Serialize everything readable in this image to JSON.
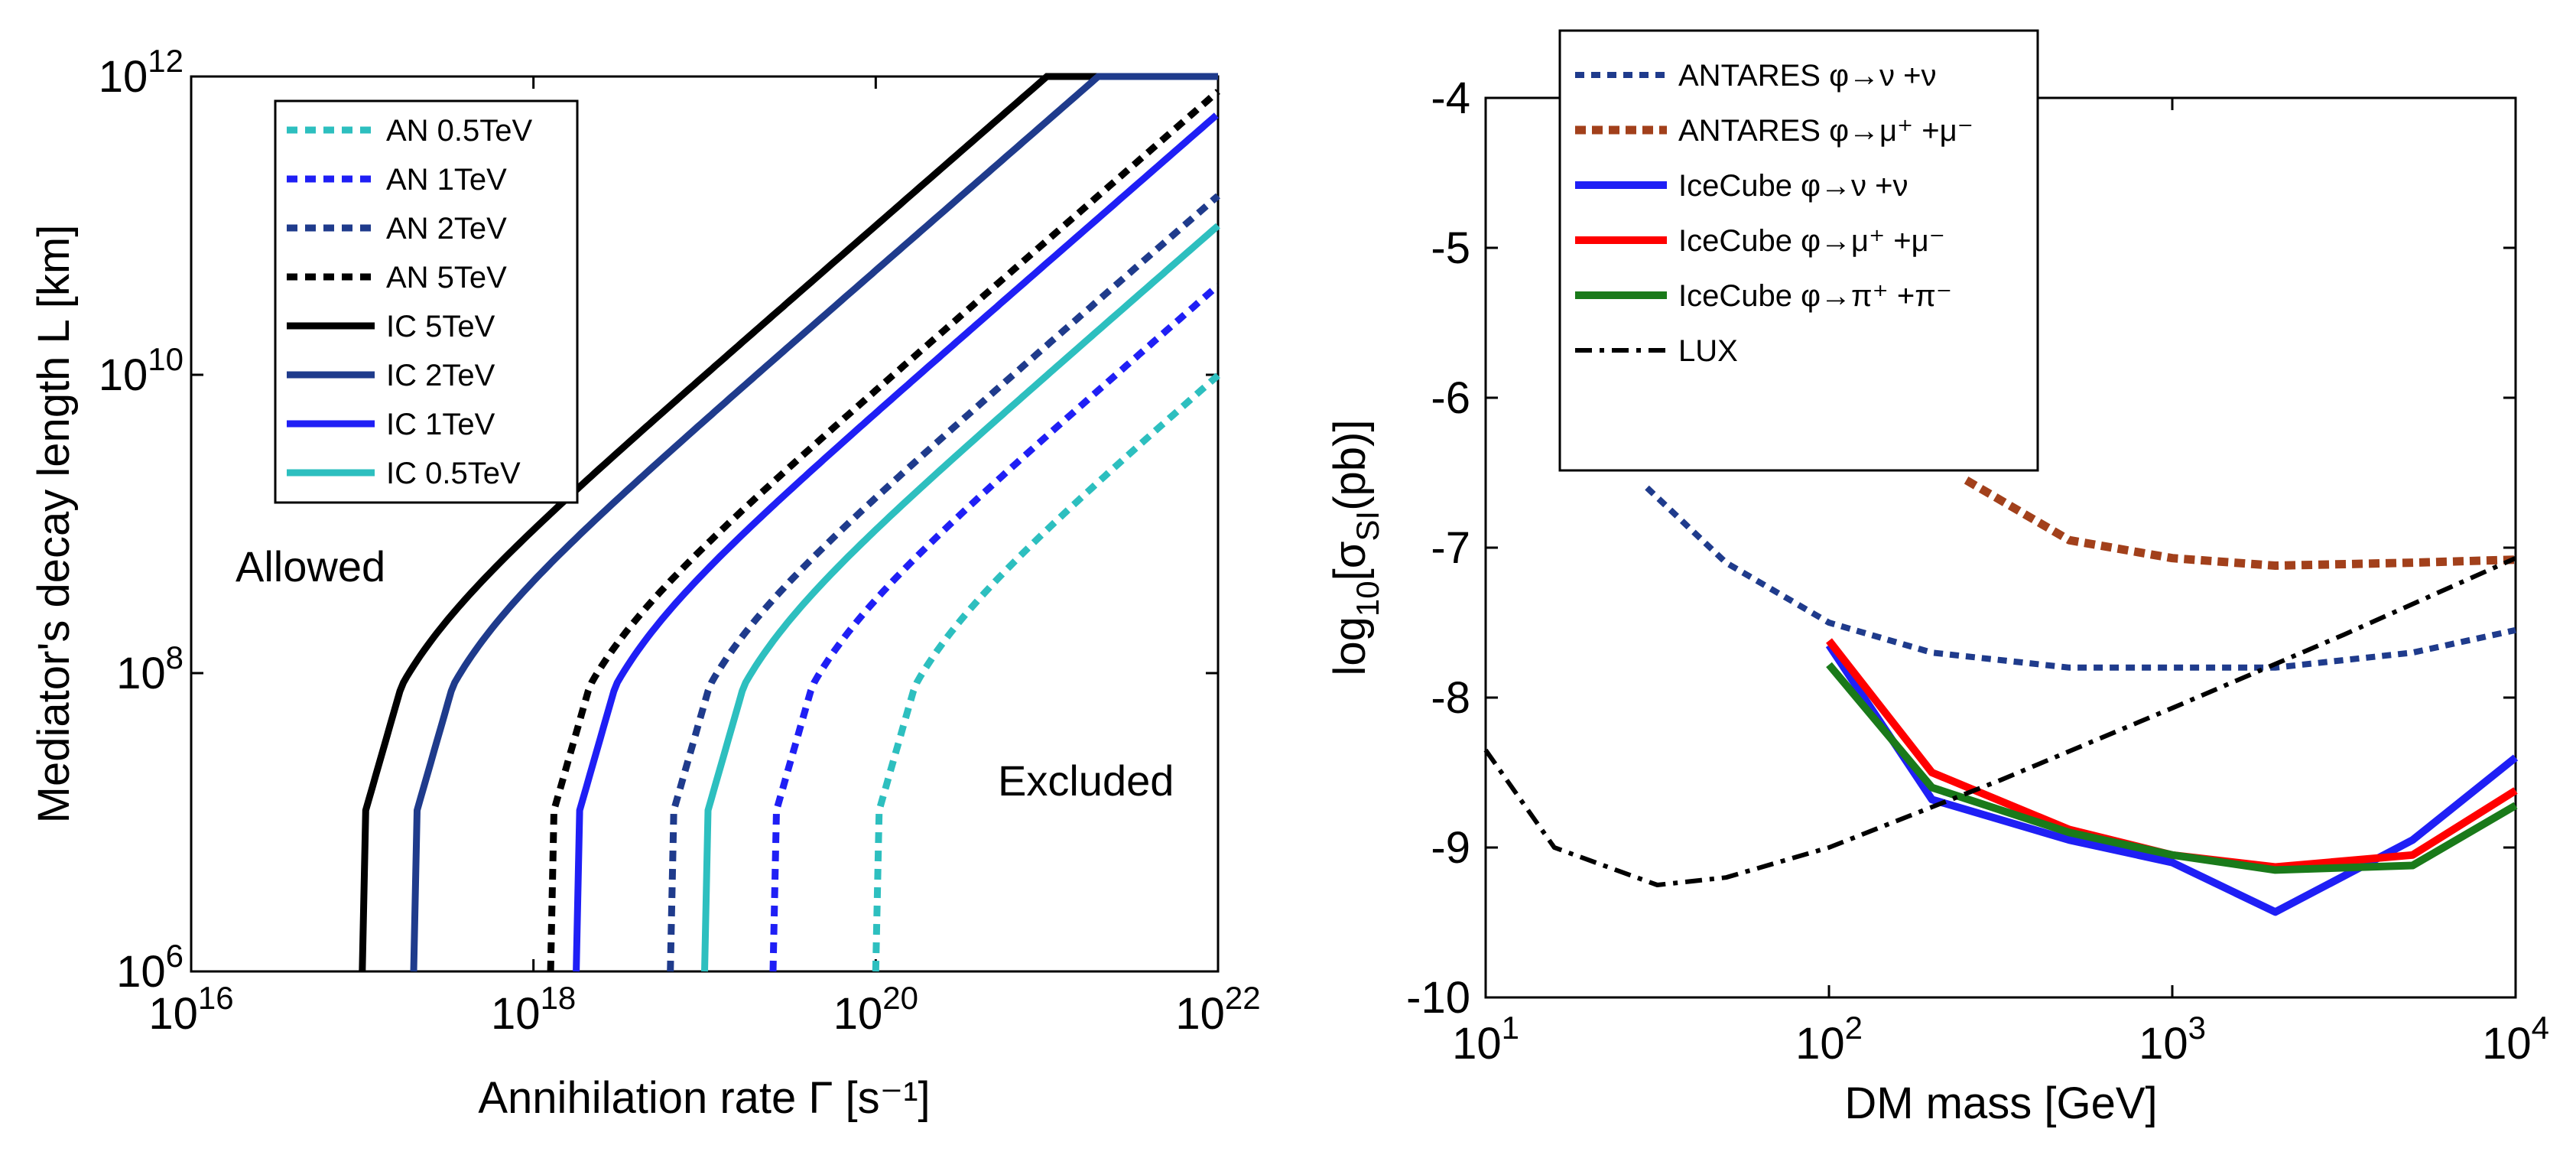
{
  "colors": {
    "cyan": "#2dbfbf",
    "blue": "#1f1ff5",
    "navy": "#1f3b8c",
    "black": "#000000",
    "brown": "#a2401b",
    "red": "#ff0000",
    "green": "#1a7a1a"
  },
  "chart_data": [
    {
      "type": "line",
      "xlabel": "Annihilation rate Γ [s⁻¹]",
      "ylabel": "Mediator's decay length L [km]",
      "x_scale": "log",
      "y_scale": "log",
      "xlim_log": [
        16,
        22
      ],
      "ylim_log": [
        6,
        12
      ],
      "x_ticks": [
        {
          "base": "10",
          "exp": "16",
          "v": 16
        },
        {
          "base": "10",
          "exp": "18",
          "v": 18
        },
        {
          "base": "10",
          "exp": "20",
          "v": 20
        },
        {
          "base": "10",
          "exp": "22",
          "v": 22
        }
      ],
      "y_ticks": [
        {
          "base": "10",
          "exp": "6",
          "v": 6
        },
        {
          "base": "10",
          "exp": "8",
          "v": 8
        },
        {
          "base": "10",
          "exp": "10",
          "v": 10
        },
        {
          "base": "10",
          "exp": "12",
          "v": 12
        }
      ],
      "annotations": [
        "Allowed",
        "Excluded"
      ],
      "legend_position": "top-left",
      "series": [
        {
          "name": "AN 0.5TeV",
          "style": "dotted",
          "color": "#2dbfbf",
          "log_gamma_min": 20.0
        },
        {
          "name": "AN 1TeV",
          "style": "dotted",
          "color": "#1f1ff5",
          "log_gamma_min": 19.4
        },
        {
          "name": "AN 2TeV",
          "style": "dotted",
          "color": "#1f3b8c",
          "log_gamma_min": 18.8
        },
        {
          "name": "AN 5TeV",
          "style": "dotted",
          "color": "#000000",
          "log_gamma_min": 18.1
        },
        {
          "name": "IC 5TeV",
          "style": "solid",
          "color": "#000000",
          "log_gamma_min": 17.0
        },
        {
          "name": "IC 2TeV",
          "style": "solid",
          "color": "#1f3b8c",
          "log_gamma_min": 17.3
        },
        {
          "name": "IC 1TeV",
          "style": "solid",
          "color": "#1f1ff5",
          "log_gamma_min": 18.25
        },
        {
          "name": "IC 0.5TeV",
          "style": "solid",
          "color": "#2dbfbf",
          "log_gamma_min": 19.0
        }
      ],
      "curve_model": "L = 10^6 + k*Gamma beyond log_gamma_min; vertical at log_gamma_min below"
    },
    {
      "type": "line",
      "xlabel": "DM mass [GeV]",
      "ylabel": "log₁₀[σ_SI(pb)]",
      "x_scale": "log",
      "xlim_log": [
        1,
        4
      ],
      "ylim": [
        -10,
        -4
      ],
      "x_ticks": [
        {
          "base": "10",
          "exp": "1",
          "v": 1
        },
        {
          "base": "10",
          "exp": "2",
          "v": 2
        },
        {
          "base": "10",
          "exp": "3",
          "v": 3
        },
        {
          "base": "10",
          "exp": "4",
          "v": 4
        }
      ],
      "y_ticks": [
        "-4",
        "-5",
        "-6",
        "-7",
        "-8",
        "-9",
        "-10"
      ],
      "legend_position": "top-left",
      "series": [
        {
          "name": "ANTARES φ→ν +ν",
          "style": "dotted-thin",
          "color": "#1f3b8c",
          "log_mass": [
            1.47,
            1.7,
            2.0,
            2.3,
            2.7,
            3.0,
            3.3,
            3.7,
            4.0
          ],
          "values": [
            -6.6,
            -7.1,
            -7.5,
            -7.7,
            -7.8,
            -7.8,
            -7.8,
            -7.7,
            -7.55
          ]
        },
        {
          "name": "ANTARES φ→μ⁺ +μ⁻",
          "style": "dotted-thick",
          "color": "#a2401b",
          "log_mass": [
            2.4,
            2.7,
            3.0,
            3.3,
            3.7,
            4.0
          ],
          "values": [
            -6.55,
            -6.95,
            -7.07,
            -7.12,
            -7.1,
            -7.08
          ]
        },
        {
          "name": "IceCube φ→ν +ν",
          "style": "solid",
          "color": "#1f1ff5",
          "log_mass": [
            2.0,
            2.3,
            2.7,
            3.0,
            3.3,
            3.7,
            4.0
          ],
          "values": [
            -7.65,
            -8.68,
            -8.95,
            -9.1,
            -9.43,
            -8.95,
            -8.4
          ]
        },
        {
          "name": "IceCube φ→μ⁺ +μ⁻",
          "style": "solid",
          "color": "#ff0000",
          "log_mass": [
            2.0,
            2.3,
            2.7,
            3.0,
            3.3,
            3.7,
            4.0
          ],
          "values": [
            -7.62,
            -8.5,
            -8.88,
            -9.05,
            -9.13,
            -9.05,
            -8.62
          ]
        },
        {
          "name": "IceCube φ→π⁺ +π⁻",
          "style": "solid",
          "color": "#1a7a1a",
          "log_mass": [
            2.0,
            2.3,
            2.7,
            3.0,
            3.3,
            3.7,
            4.0
          ],
          "values": [
            -7.78,
            -8.6,
            -8.9,
            -9.05,
            -9.15,
            -9.12,
            -8.72
          ]
        },
        {
          "name": "LUX",
          "style": "dashdot",
          "color": "#000000",
          "log_mass": [
            1.0,
            1.2,
            1.5,
            1.7,
            2.0,
            2.5,
            3.0,
            3.5,
            4.0
          ],
          "values": [
            -8.35,
            -9.0,
            -9.25,
            -9.2,
            -9.0,
            -8.55,
            -8.07,
            -7.58,
            -7.07
          ]
        }
      ]
    }
  ]
}
